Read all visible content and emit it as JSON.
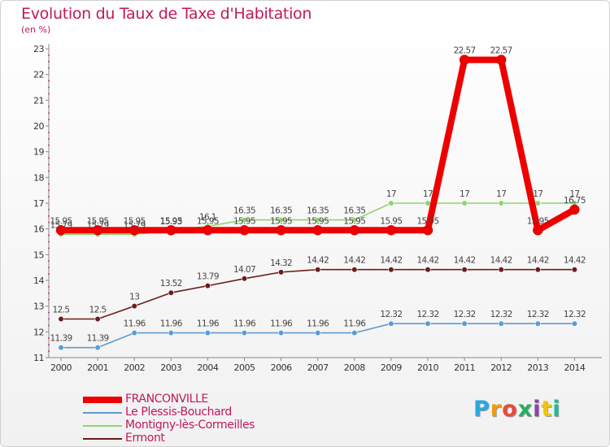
{
  "header": {
    "title": "Evolution du Taux de Taxe d'Habitation",
    "unit": "(en %)"
  },
  "brand": {
    "text": "Proxiti",
    "colors": [
      "#29a8e0",
      "#f39c12",
      "#e74c3c",
      "#27ae60",
      "#8e44ad",
      "#f1c40f",
      "#1abc9c"
    ]
  },
  "chart_data": {
    "type": "line",
    "x": [
      "2000",
      "2001",
      "2002",
      "2003",
      "2004",
      "2005",
      "2006",
      "2007",
      "2008",
      "2009",
      "2010",
      "2011",
      "2012",
      "2013",
      "2014"
    ],
    "ylim": [
      11,
      23
    ],
    "yticks": [
      11,
      12,
      13,
      14,
      15,
      16,
      17,
      18,
      19,
      20,
      21,
      22,
      23
    ],
    "grid": false,
    "legend_position": "bottom",
    "series": [
      {
        "name": "Le Plessis-Bouchard",
        "color": "#5b9bd5",
        "values": [
          11.39,
          11.39,
          11.96,
          11.96,
          11.96,
          11.96,
          11.96,
          11.96,
          11.96,
          12.32,
          12.32,
          12.32,
          12.32,
          12.32,
          12.32
        ],
        "labels": [
          "11.39",
          "11.39",
          "11.96",
          "11.96",
          "11.96",
          "11.96",
          "11.96",
          "11.96",
          "11.96",
          "12.32",
          "12.32",
          "12.32",
          "12.32",
          "12.32",
          "12.32"
        ]
      },
      {
        "name": "Ermont",
        "color": "#6d1b1b",
        "values": [
          12.5,
          12.5,
          13,
          13.52,
          13.79,
          14.07,
          14.32,
          14.42,
          14.42,
          14.42,
          14.42,
          14.42,
          14.42,
          14.42,
          14.42
        ],
        "labels": [
          "12.5",
          "12.5",
          "13",
          "13.52",
          "13.79",
          "14.07",
          "14.32",
          "14.42",
          "14.42",
          "14.42",
          "14.42",
          "14.42",
          "14.42",
          "14.42",
          "14.42"
        ]
      },
      {
        "name": "Montigny-lès-Cormeilles",
        "color": "#8ed46c",
        "values": [
          15.79,
          15.79,
          15.79,
          15.93,
          16.1,
          16.35,
          16.35,
          16.35,
          16.35,
          17,
          17,
          17,
          17,
          17,
          17
        ],
        "labels": [
          "15.79",
          "15.79",
          "15.79",
          "15.93",
          "16.1",
          "16.35",
          "16.35",
          "16.35",
          "16.35",
          "17",
          "17",
          "17",
          "17",
          "17",
          "17"
        ]
      },
      {
        "name": "FRANCONVILLE",
        "color": "#ee0000",
        "values": [
          15.95,
          15.95,
          15.95,
          15.95,
          15.95,
          15.95,
          15.95,
          15.95,
          15.95,
          15.95,
          15.95,
          22.57,
          22.57,
          15.95,
          16.75
        ],
        "labels": [
          "15.95",
          "15.95",
          "15.95",
          "15.95",
          "15.95",
          "15.95",
          "15.95",
          "15.95",
          "15.95",
          "15.95",
          "15.95",
          "22.57",
          "22.57",
          "15.95",
          "16.75"
        ]
      }
    ]
  }
}
